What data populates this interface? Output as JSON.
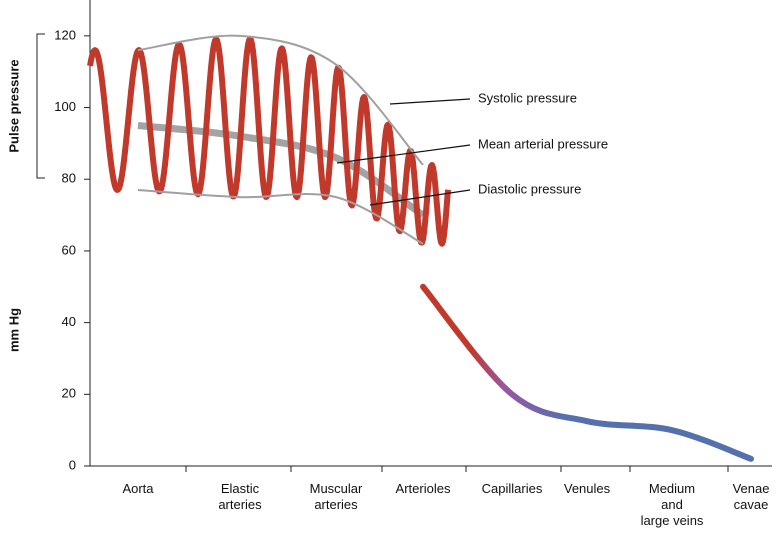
{
  "chart_data": {
    "type": "line",
    "y_label": "mm Hg",
    "bracket_label": "Pulse pressure",
    "categories": [
      "Aorta",
      "Elastic arteries",
      "Muscular arteries",
      "Arterioles",
      "Capillaries",
      "Venules",
      "Medium and large veins",
      "Venae cavae"
    ],
    "series": [
      {
        "name": "Systolic pressure",
        "color": "#a0a0a0",
        "values": [
          116,
          120,
          112,
          84,
          null,
          null,
          null,
          null
        ]
      },
      {
        "name": "Mean arterial pressure",
        "color": "#8c8c8c",
        "values": [
          95,
          92,
          86,
          70,
          null,
          null,
          null,
          null
        ]
      },
      {
        "name": "Diastolic pressure",
        "color": "#a0a0a0",
        "values": [
          77,
          75,
          75,
          62,
          null,
          null,
          null,
          null
        ]
      },
      {
        "color": "#5470ad",
        "values": [
          null,
          null,
          null,
          50,
          20,
          12.5,
          10,
          2
        ]
      }
    ],
    "oscillation_color": "#c0392b",
    "ylim": [
      0,
      130
    ],
    "yticks": [
      0,
      20,
      40,
      60,
      80,
      100,
      120
    ]
  }
}
